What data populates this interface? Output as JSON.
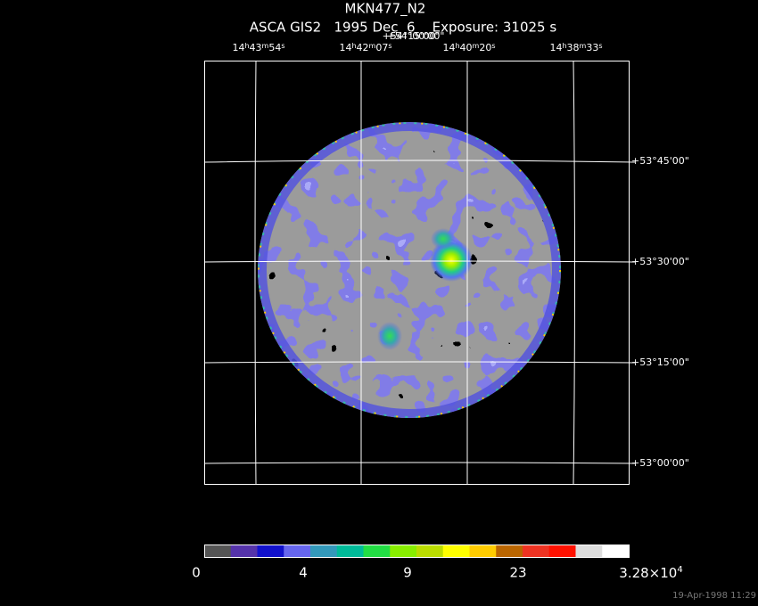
{
  "header": {
    "title": "MKN477_N2",
    "subtitle": "ASCA GIS2   1995 Dec  6    Exposure: 31025 s"
  },
  "ra_labels": [
    [
      "14",
      "h",
      "43",
      "m",
      "54",
      "s"
    ],
    [
      "14",
      "h",
      "42",
      "m",
      "07",
      "s"
    ],
    [
      "14",
      "h",
      "40",
      "m",
      "20",
      "s"
    ],
    [
      "14",
      "h",
      "38",
      "m",
      "33",
      "s"
    ]
  ],
  "top_dec_labels": [
    "+54°15'00\"",
    "+54°00'00\""
  ],
  "dec_labels": [
    "+53°45'00\"",
    "+53°30'00\"",
    "+53°15'00\"",
    "+53°00'00\""
  ],
  "colorbar": {
    "labels": [
      "0",
      "4",
      "9",
      "23",
      {
        "text": "3.28×10",
        "exponent": "4"
      }
    ]
  },
  "timestamp": "19-Apr-1998 11:29"
}
